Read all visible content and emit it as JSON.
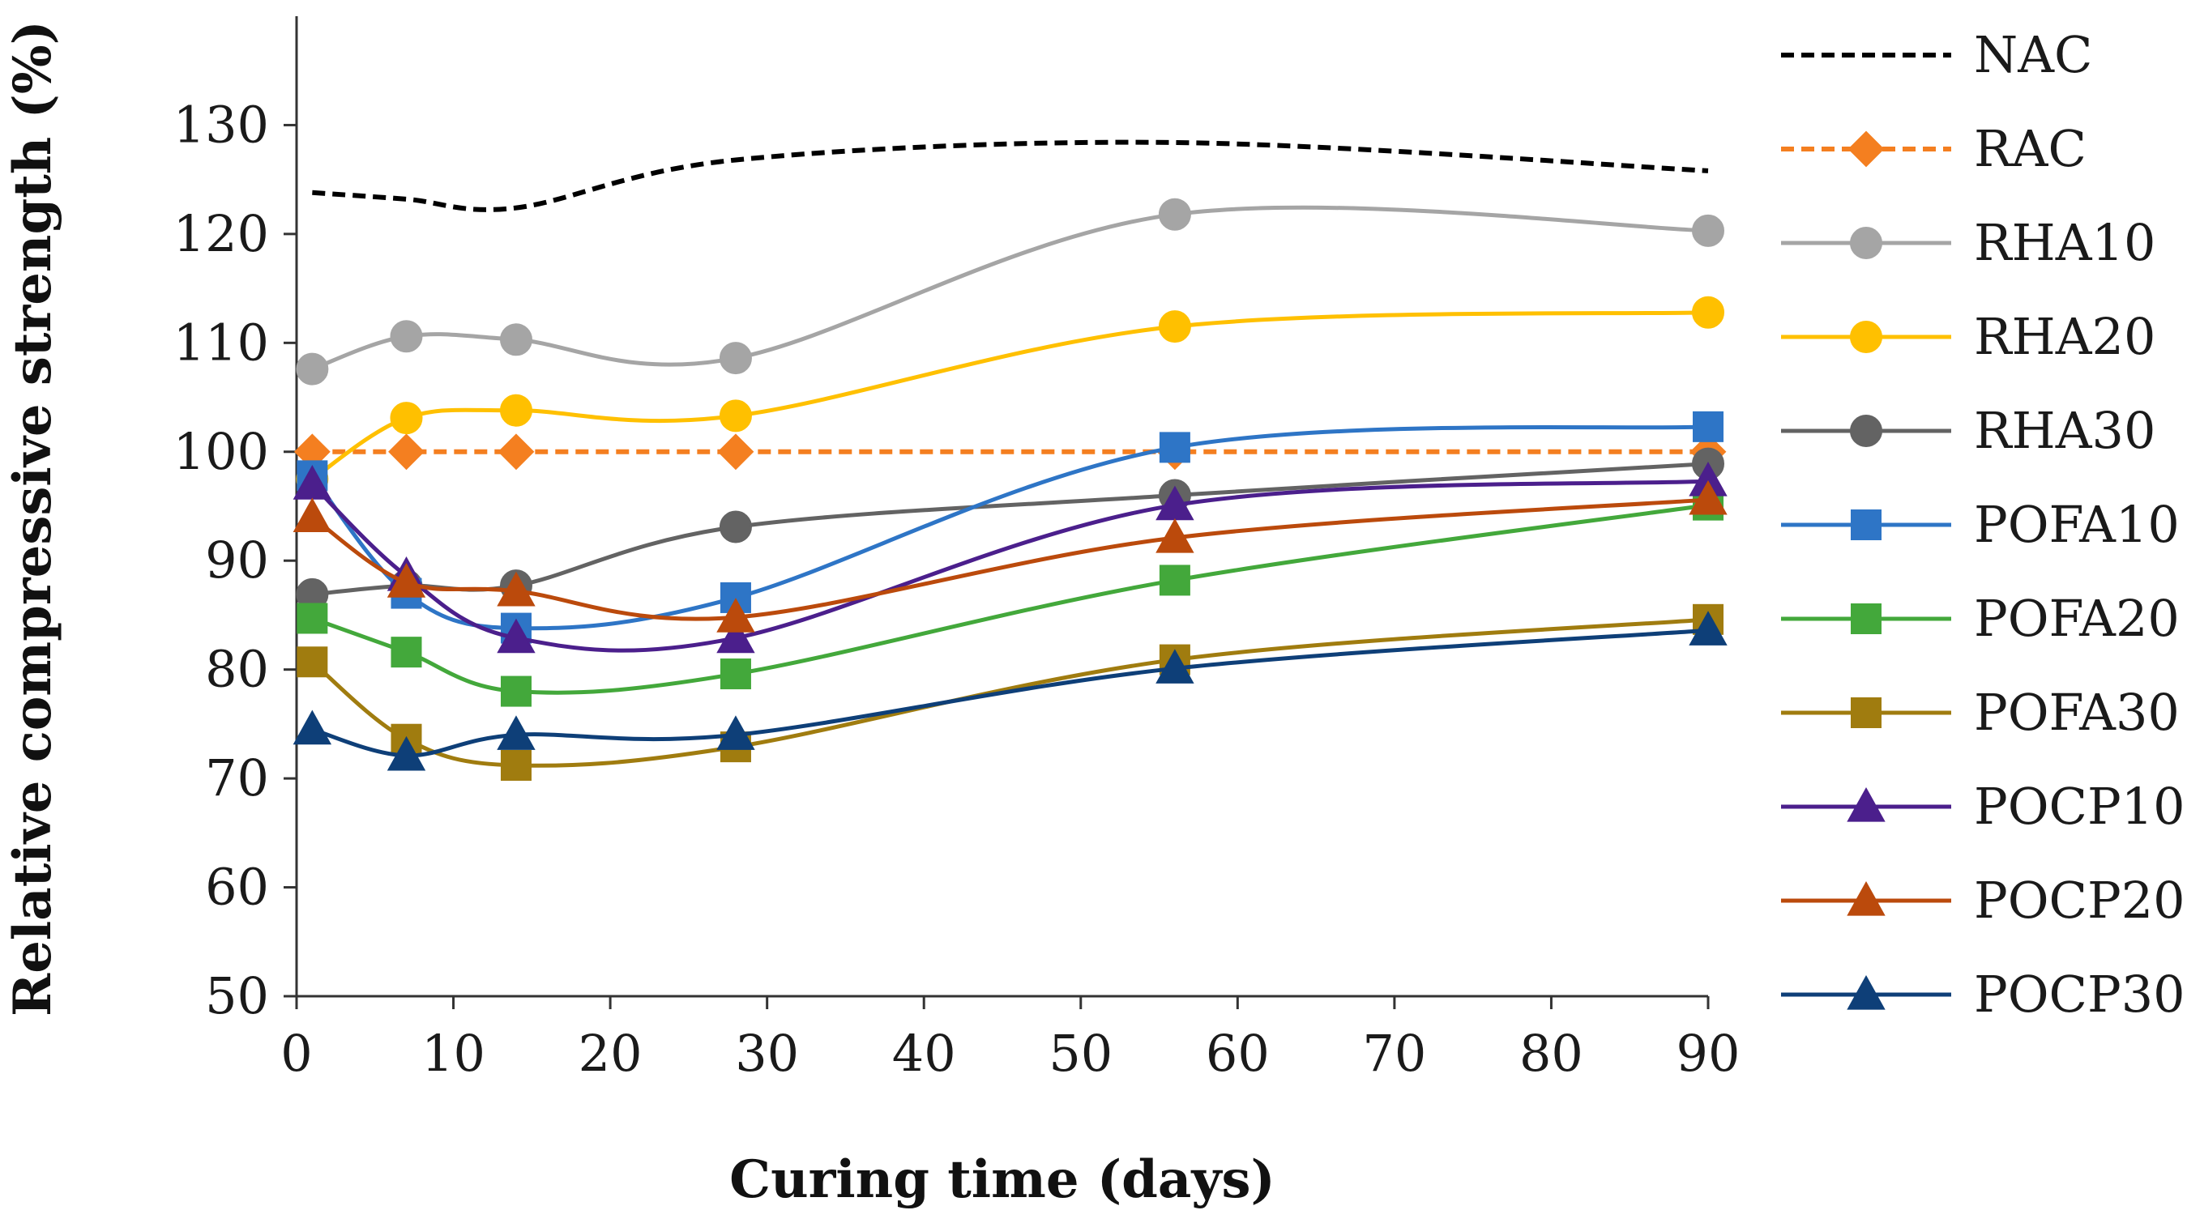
{
  "chart_data": {
    "type": "line",
    "title": "",
    "xlabel": "Curing time (days)",
    "ylabel": "Relative compressive strength (%)",
    "xlim": [
      0,
      90
    ],
    "ylim": [
      50,
      140
    ],
    "xticks": [
      0,
      10,
      20,
      30,
      40,
      50,
      60,
      70,
      80,
      90
    ],
    "yticks": [
      50,
      60,
      70,
      80,
      90,
      100,
      110,
      120,
      130
    ],
    "x": [
      1,
      7,
      14,
      28,
      56,
      90
    ],
    "grid": false,
    "legend_position": "right",
    "series": [
      {
        "name": "NAC",
        "values": [
          123.8,
          123.2,
          122.4,
          126.8,
          128.4,
          125.8
        ],
        "color": "#000000",
        "dash": true,
        "marker": "none"
      },
      {
        "name": "RAC",
        "values": [
          100,
          100,
          100,
          100,
          100,
          100
        ],
        "color": "#f47f20",
        "dash": true,
        "marker": "diamond"
      },
      {
        "name": "RHA10",
        "values": [
          107.6,
          110.6,
          110.3,
          108.6,
          121.8,
          120.3
        ],
        "color": "#a5a5a5",
        "dash": false,
        "marker": "circle"
      },
      {
        "name": "RHA20",
        "values": [
          97.5,
          103.1,
          103.8,
          103.3,
          111.5,
          112.8
        ],
        "color": "#ffc000",
        "dash": false,
        "marker": "circle"
      },
      {
        "name": "RHA30",
        "values": [
          86.9,
          87.7,
          87.7,
          93.1,
          96.0,
          98.9
        ],
        "color": "#636363",
        "dash": false,
        "marker": "circle"
      },
      {
        "name": "POFA10",
        "values": [
          97.8,
          87.0,
          83.8,
          86.6,
          100.4,
          102.3
        ],
        "color": "#2e75c6",
        "dash": false,
        "marker": "square"
      },
      {
        "name": "POFA20",
        "values": [
          84.7,
          81.6,
          78.0,
          79.6,
          88.2,
          95.1
        ],
        "color": "#43a83b",
        "dash": false,
        "marker": "square"
      },
      {
        "name": "POFA30",
        "values": [
          80.7,
          73.6,
          71.2,
          72.9,
          80.9,
          84.6
        ],
        "color": "#a07c0f",
        "dash": false,
        "marker": "square"
      },
      {
        "name": "POCP10",
        "values": [
          97.0,
          88.6,
          82.9,
          82.9,
          95.1,
          97.3
        ],
        "color": "#4b1f8c",
        "dash": false,
        "marker": "triangle"
      },
      {
        "name": "POCP20",
        "values": [
          94.0,
          88.0,
          87.2,
          84.8,
          92.1,
          95.6
        ],
        "color": "#bb4a0c",
        "dash": false,
        "marker": "triangle"
      },
      {
        "name": "POCP30",
        "values": [
          74.5,
          72.1,
          74.0,
          74.0,
          80.1,
          83.6
        ],
        "color": "#0e3f78",
        "dash": false,
        "marker": "triangle"
      }
    ]
  }
}
